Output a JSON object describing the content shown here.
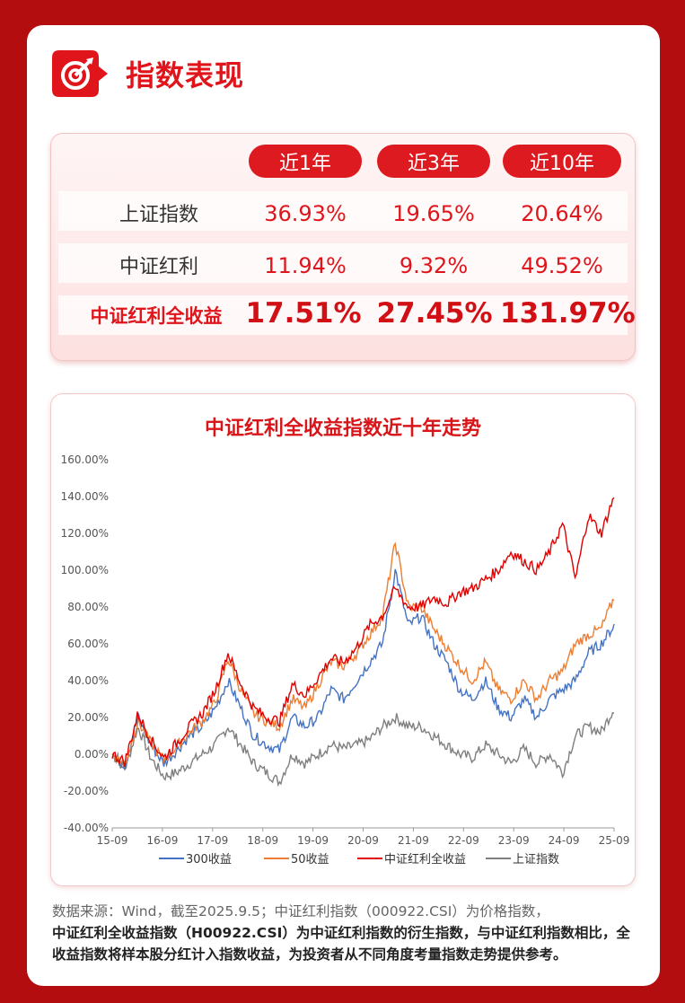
{
  "header": {
    "title": "指数表现"
  },
  "table": {
    "periods": [
      "近1年",
      "近3年",
      "近10年"
    ],
    "rows": [
      {
        "label": "上证指数",
        "values": [
          "36.93%",
          "19.65%",
          "20.64%"
        ]
      },
      {
        "label": "中证红利",
        "values": [
          "11.94%",
          "9.32%",
          "49.52%"
        ]
      },
      {
        "label": "中证红利全收益",
        "values": [
          "17.51%",
          "27.45%",
          "131.97%"
        ]
      }
    ]
  },
  "chart_data": {
    "type": "line",
    "title": "中证红利全收益指数近十年走势",
    "xticks": [
      "15-09",
      "16-09",
      "17-09",
      "18-09",
      "19-09",
      "20-09",
      "21-09",
      "22-09",
      "23-09",
      "24-09",
      "25-09"
    ],
    "yticks": [
      "160.00%",
      "140.00%",
      "120.00%",
      "100.00%",
      "80.00%",
      "60.00%",
      "40.00%",
      "20.00%",
      "0.00%",
      "-20.00%",
      "-40.00%"
    ],
    "ylim": [
      -40,
      160
    ],
    "grid": false,
    "legend_position": "bottom",
    "series": [
      {
        "name": "300收益",
        "color": "#4472c4",
        "values": [
          0,
          -6,
          20,
          5,
          -5,
          2,
          10,
          15,
          25,
          40,
          25,
          10,
          5,
          2,
          20,
          15,
          20,
          35,
          30,
          40,
          50,
          60,
          100,
          70,
          75,
          60,
          50,
          35,
          30,
          40,
          25,
          20,
          30,
          20,
          30,
          35,
          40,
          55,
          60,
          70
        ]
      },
      {
        "name": "50收益",
        "color": "#ed7d31",
        "values": [
          0,
          -5,
          18,
          6,
          -3,
          4,
          12,
          18,
          28,
          52,
          35,
          22,
          18,
          15,
          30,
          25,
          38,
          50,
          48,
          55,
          65,
          75,
          115,
          80,
          80,
          68,
          58,
          48,
          40,
          50,
          35,
          30,
          40,
          30,
          40,
          45,
          60,
          65,
          68,
          85
        ]
      },
      {
        "name": "中证红利全收益",
        "color": "#e00000",
        "values": [
          0,
          -4,
          22,
          8,
          -2,
          6,
          15,
          22,
          35,
          55,
          38,
          25,
          20,
          18,
          38,
          32,
          42,
          52,
          50,
          58,
          70,
          75,
          90,
          80,
          80,
          85,
          82,
          88,
          90,
          95,
          100,
          110,
          105,
          100,
          110,
          125,
          95,
          130,
          120,
          140
        ]
      },
      {
        "name": "上证指数",
        "color": "#7f7f7f",
        "values": [
          0,
          -8,
          15,
          -2,
          -12,
          -10,
          -5,
          0,
          5,
          15,
          5,
          -5,
          -10,
          -15,
          0,
          -5,
          0,
          5,
          3,
          5,
          8,
          15,
          20,
          15,
          15,
          10,
          5,
          0,
          -2,
          5,
          0,
          -5,
          3,
          -5,
          0,
          -10,
          10,
          15,
          12,
          25
        ]
      }
    ]
  },
  "footnote": {
    "line1": "数据来源：Wind，截至2025.9.5；中证红利指数（000922.CSI）为价格指数，",
    "line2": "中证红利全收益指数（H00922.CSI）为中证红利指数的衍生指数，与中证红利指数相比，全收益指数将样本股分红计入指数收益，为投资者从不同角度考量指数走势提供参考。"
  }
}
